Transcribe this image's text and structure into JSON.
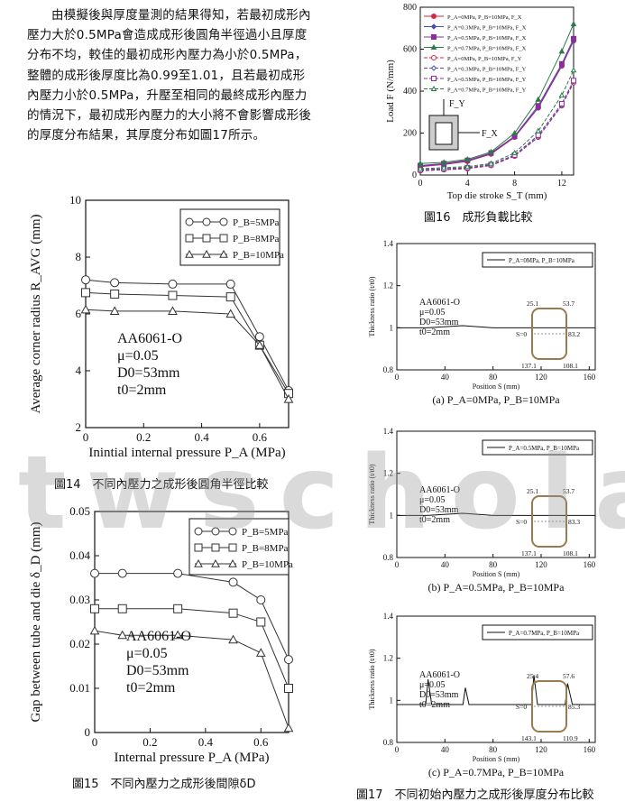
{
  "paragraph": "由模擬後與厚度量測的結果得知，若最初成形內壓力大於0.5MPa會造成成形後圓角半徑過小且厚度分布不均，較佳的最初成形內壓力為小於0.5MPa，整體的成形後厚度比為0.99至1.01，且若最初成形內壓力小於0.5MPa，升壓至相同的最終成形內壓力的情況下，最初成形內壓力的大小將不會影響成形後的厚度分布結果，其厚度分布如圖17所示。",
  "watermark": "twscholar",
  "captions": {
    "fig14": "圖14　不同內壓力之成形後圓角半徑比較",
    "fig15": "圖15　不同內壓力之成形後間隙δD",
    "fig16": "圖16　成形負載比較",
    "fig17": "圖17　不同初始內壓力之成形後厚度分布比較"
  },
  "chart_data": [
    {
      "id": "fig14",
      "type": "line",
      "xlabel": "Inintial internal pressure P_A (MPa)",
      "ylabel": "Average corner radius R_AVG (mm)",
      "xlim": [
        0,
        0.7
      ],
      "ylim": [
        2,
        10
      ],
      "xticks": [
        "0",
        "0.2",
        "0.4",
        "0.6"
      ],
      "yticks": [
        "2",
        "4",
        "6",
        "8",
        "10"
      ],
      "x": [
        0,
        0.1,
        0.3,
        0.5,
        0.6,
        0.7
      ],
      "series": [
        {
          "name": "P_B=5MPa",
          "marker": "circle",
          "values": [
            7.2,
            7.1,
            7.05,
            7.05,
            5.2,
            3.3
          ]
        },
        {
          "name": "P_B=8MPa",
          "marker": "square",
          "values": [
            6.75,
            6.7,
            6.65,
            6.6,
            4.9,
            3.2
          ]
        },
        {
          "name": "P_B=10MPa",
          "marker": "triangle",
          "values": [
            6.15,
            6.1,
            6.1,
            6.0,
            4.9,
            3.0
          ]
        }
      ],
      "annotation": [
        "AA6061-O",
        "μ=0.05",
        "D0=53mm",
        "t0=2mm"
      ]
    },
    {
      "id": "fig15",
      "type": "line",
      "xlabel": "Internal pressure P_A (MPa)",
      "ylabel": "Gap between tube and die δ_D (mm)",
      "xlim": [
        0,
        0.7
      ],
      "ylim": [
        0,
        0.05
      ],
      "xticks": [
        "0",
        "0.2",
        "0.4",
        "0.6"
      ],
      "yticks": [
        "0",
        "0.01",
        "0.02",
        "0.03",
        "0.04",
        "0.05"
      ],
      "x": [
        0,
        0.1,
        0.3,
        0.5,
        0.6,
        0.7
      ],
      "series": [
        {
          "name": "P_B=5MPa",
          "marker": "circle",
          "values": [
            0.036,
            0.036,
            0.036,
            0.034,
            0.03,
            0.0165
          ]
        },
        {
          "name": "P_B=8MPa",
          "marker": "square",
          "values": [
            0.028,
            0.028,
            0.028,
            0.027,
            0.025,
            0.01
          ]
        },
        {
          "name": "P_B=10MPa",
          "marker": "triangle",
          "values": [
            0.023,
            0.022,
            0.022,
            0.021,
            0.018,
            0.001
          ]
        }
      ],
      "annotation": [
        "AA6061-O",
        "μ=0.05",
        "D0=53mm",
        "t0=2mm"
      ]
    },
    {
      "id": "fig16",
      "type": "line",
      "xlabel": "Top die stroke S_T (mm)",
      "ylabel": "Load F (N/mm)",
      "xlim": [
        0,
        13
      ],
      "ylim": [
        0,
        800
      ],
      "xticks": [
        "0",
        "4",
        "8",
        "12"
      ],
      "yticks": [
        "0",
        "200",
        "400",
        "600",
        "800"
      ],
      "series": [
        {
          "name": "P_A=0MPa, P_B=10MPa, F_X",
          "points": [
            [
              0,
              40
            ],
            [
              2,
              50
            ],
            [
              4,
              65
            ],
            [
              6,
              100
            ],
            [
              8,
              180
            ],
            [
              10,
              320
            ],
            [
              12,
              520
            ],
            [
              13,
              640
            ]
          ]
        },
        {
          "name": "P_A=0.3MPa, P_B=10MPa, F_X",
          "points": [
            [
              0,
              42
            ],
            [
              2,
              52
            ],
            [
              4,
              67
            ],
            [
              6,
              102
            ],
            [
              8,
              182
            ],
            [
              10,
              322
            ],
            [
              12,
              522
            ],
            [
              13,
              642
            ]
          ]
        },
        {
          "name": "P_A=0.5MPa, P_B=10MPa, F_X",
          "points": [
            [
              0,
              45
            ],
            [
              2,
              55
            ],
            [
              4,
              70
            ],
            [
              6,
              105
            ],
            [
              8,
              185
            ],
            [
              10,
              330
            ],
            [
              12,
              530
            ],
            [
              13,
              650
            ]
          ]
        },
        {
          "name": "P_A=0.7MPa, P_B=10MPa, F_X",
          "points": [
            [
              0,
              55
            ],
            [
              2,
              60
            ],
            [
              4,
              75
            ],
            [
              6,
              110
            ],
            [
              8,
              200
            ],
            [
              10,
              360
            ],
            [
              12,
              590
            ],
            [
              13,
              720
            ]
          ]
        },
        {
          "name": "P_A=0MPa, P_B=10MPa, F_Y",
          "points": [
            [
              0,
              20
            ],
            [
              2,
              25
            ],
            [
              4,
              30
            ],
            [
              6,
              45
            ],
            [
              8,
              90
            ],
            [
              10,
              180
            ],
            [
              12,
              330
            ],
            [
              13,
              440
            ]
          ]
        },
        {
          "name": "P_A=0.3MPa, P_B=10MPa, F_Y",
          "points": [
            [
              0,
              22
            ],
            [
              2,
              27
            ],
            [
              4,
              32
            ],
            [
              6,
              47
            ],
            [
              8,
              92
            ],
            [
              10,
              182
            ],
            [
              12,
              332
            ],
            [
              13,
              445
            ]
          ]
        },
        {
          "name": "P_A=0.5MPa, P_B=10MPa, F_Y",
          "points": [
            [
              0,
              25
            ],
            [
              2,
              30
            ],
            [
              4,
              35
            ],
            [
              6,
              50
            ],
            [
              8,
              95
            ],
            [
              10,
              190
            ],
            [
              12,
              340
            ],
            [
              13,
              450
            ]
          ]
        },
        {
          "name": "P_A=0.7MPa, P_B=10MPa, F_Y",
          "points": [
            [
              0,
              30
            ],
            [
              2,
              35
            ],
            [
              4,
              40
            ],
            [
              6,
              55
            ],
            [
              8,
              105
            ],
            [
              10,
              210
            ],
            [
              12,
              380
            ],
            [
              13,
              500
            ]
          ]
        }
      ],
      "inset_labels": [
        "F_Y",
        "F_X"
      ]
    },
    {
      "id": "fig17a",
      "type": "line",
      "caption": "(a) P_A=0MPa, P_B=10MPa",
      "xlabel": "Position S (mm)",
      "ylabel": "Thickness ratio (t/t0)",
      "xlim": [
        0,
        160
      ],
      "ylim": [
        0.8,
        1.4
      ],
      "xticks": [
        "0",
        "40",
        "80",
        "120",
        "160"
      ],
      "yticks": [
        "0.8",
        "1",
        "1.2",
        "1.4"
      ],
      "series": [
        {
          "name": "P_A=0MPa, P_B=10MPa",
          "points": [
            [
              0,
              1.0
            ],
            [
              25,
              1.0
            ],
            [
              55,
              1.01
            ],
            [
              80,
              1.0
            ],
            [
              110,
              1.0
            ],
            [
              140,
              1.0
            ],
            [
              165,
              1.0
            ]
          ]
        }
      ],
      "annotation": [
        "AA6061-O",
        "μ=0.05",
        "D0=53mm",
        "t0=2mm"
      ],
      "inset_values": [
        "25.1",
        "53.7",
        "83.2",
        "137.1",
        "108.1",
        "S=0"
      ]
    },
    {
      "id": "fig17b",
      "type": "line",
      "caption": "(b) P_A=0.5MPa, P_B=10MPa",
      "xlabel": "Position S (mm)",
      "ylabel": "Thickness ratio (t/t0)",
      "xlim": [
        0,
        160
      ],
      "ylim": [
        0.8,
        1.4
      ],
      "xticks": [
        "0",
        "40",
        "80",
        "120",
        "160"
      ],
      "yticks": [
        "0.8",
        "1",
        "1.2",
        "1.4"
      ],
      "series": [
        {
          "name": "P_A=0.5MPa, P_B=10MPa",
          "points": [
            [
              0,
              1.0
            ],
            [
              25,
              1.0
            ],
            [
              55,
              1.01
            ],
            [
              80,
              1.0
            ],
            [
              110,
              1.0
            ],
            [
              140,
              1.0
            ],
            [
              165,
              1.0
            ]
          ]
        }
      ],
      "annotation": [
        "AA6061-O",
        "μ=0.05",
        "D0=53mm",
        "t0=2mm"
      ],
      "inset_values": [
        "25.1",
        "53.7",
        "83.3",
        "137.1",
        "108.1",
        "S=0"
      ]
    },
    {
      "id": "fig17c",
      "type": "line",
      "caption": "(c) P_A=0.7MPa, P_B=10MPa",
      "xlabel": "Position S (mm)",
      "ylabel": "Thickness ratio (t/t0)",
      "xlim": [
        0,
        160
      ],
      "ylim": [
        0.8,
        1.4
      ],
      "xticks": [
        "0",
        "40",
        "80",
        "120",
        "160"
      ],
      "yticks": [
        "0.8",
        "1",
        "1.2",
        "1.4"
      ],
      "series": [
        {
          "name": "P_A=0.7MPa, P_B=10MPa",
          "points": [
            [
              0,
              0.98
            ],
            [
              24,
              0.98
            ],
            [
              26,
              1.1
            ],
            [
              29,
              0.98
            ],
            [
              55,
              0.98
            ],
            [
              57,
              1.06
            ],
            [
              60,
              0.98
            ],
            [
              112,
              0.98
            ],
            [
              114,
              1.12
            ],
            [
              117,
              0.98
            ],
            [
              140,
              0.98
            ],
            [
              142,
              1.08
            ],
            [
              146,
              0.98
            ],
            [
              165,
              0.98
            ]
          ]
        }
      ],
      "annotation": [
        "AA6061-O",
        "μ=0.05",
        "D0=53mm",
        "t0=2mm"
      ],
      "inset_values": [
        "25.4",
        "57.6",
        "85.3",
        "143.1",
        "110.9",
        "S=0"
      ]
    }
  ]
}
